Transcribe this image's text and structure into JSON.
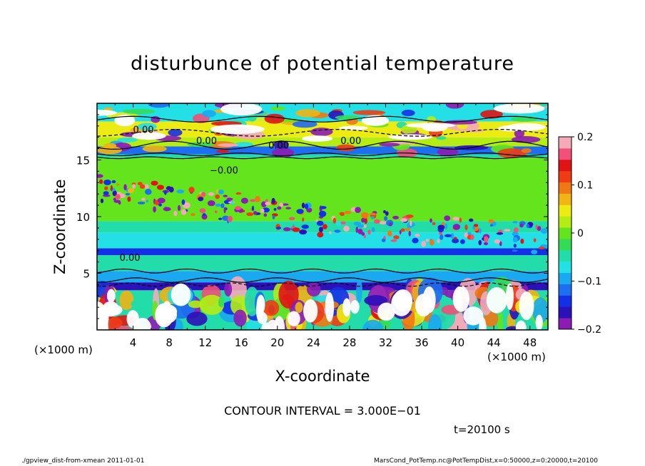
{
  "chart_data": {
    "type": "heatmap",
    "title": "disturbunce of potential temperature",
    "xlabel": "X-coordinate",
    "ylabel": "Z-coordinate",
    "x_unit": "(×1000 m)",
    "y_unit": "(×1000 m)",
    "xlim": [
      0,
      50
    ],
    "ylim": [
      0,
      20
    ],
    "x_ticks": [
      "4",
      "8",
      "12",
      "16",
      "20",
      "24",
      "28",
      "32",
      "36",
      "40",
      "44",
      "48"
    ],
    "y_ticks": [
      "5",
      "10",
      "15"
    ],
    "colorbar": {
      "range": [
        -0.2,
        0.2
      ],
      "tick_labels": [
        "0.2",
        "0.1",
        "0",
        "−0.1",
        "−0.2"
      ],
      "colors": [
        "#8c1cb4",
        "#2c10b8",
        "#1430e6",
        "#1e6ef0",
        "#1aa8f0",
        "#22e0e6",
        "#22dcaa",
        "#34dc56",
        "#64e41c",
        "#b4ec14",
        "#ecec14",
        "#f0b414",
        "#f07814",
        "#f03c14",
        "#e01414",
        "#f0507a",
        "#f5aab8"
      ]
    },
    "contour_labels": [
      "0.00",
      "0.00",
      "0.00",
      "0.00",
      "−0.00",
      "0.00"
    ],
    "contour_interval": "CONTOUR INTERVAL = 3.000E−01",
    "time": "t=20100 s",
    "footer_left": "./gpview_dist-from-xmean  2011-01-01",
    "footer_right": "MarsCond_PotTemp.nc@PotTempDist,x=0:50000,z=0:20000,t=20100",
    "bands": [
      {
        "z0": 0,
        "z1": 3.5,
        "value": -0.05
      },
      {
        "z0": 3.5,
        "z1": 4.2,
        "value": -0.17
      },
      {
        "z0": 4.2,
        "z1": 5.2,
        "value": -0.09
      },
      {
        "z0": 5.2,
        "z1": 6.6,
        "value": -0.05
      },
      {
        "z0": 6.6,
        "z1": 7.2,
        "value": -0.15
      },
      {
        "z0": 7.2,
        "z1": 7.8,
        "value": -0.08
      },
      {
        "z0": 7.8,
        "z1": 8.6,
        "value": -0.06
      },
      {
        "z0": 8.6,
        "z1": 9.6,
        "value": -0.04
      },
      {
        "z0": 9.6,
        "z1": 15.2,
        "value": 0.0
      },
      {
        "z0": 15.2,
        "z1": 15.5,
        "value": -0.04
      },
      {
        "z0": 15.5,
        "z1": 16.2,
        "value": -0.12
      },
      {
        "z0": 16.2,
        "z1": 17.0,
        "value": 0.03
      },
      {
        "z0": 17.0,
        "z1": 18.4,
        "value": 0.05
      },
      {
        "z0": 18.4,
        "z1": 20.0,
        "value": -0.07
      }
    ]
  }
}
